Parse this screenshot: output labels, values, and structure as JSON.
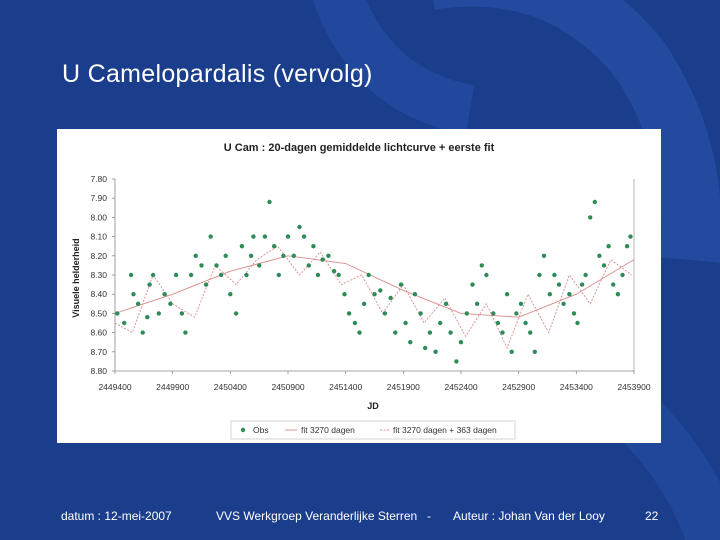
{
  "slide": {
    "title": "U Camelopardalis (vervolg)"
  },
  "footer": {
    "date": "datum : 12-mei-2007",
    "organization": "VVS Werkgroep Veranderlijke Sterren",
    "separator": "-",
    "author": "Auteur : Johan Van der Looy",
    "page_number": "22"
  },
  "colors": {
    "background": "#1a3d8c",
    "obs": "#2e8b57",
    "fit": "#d98b8b"
  },
  "chart_data": {
    "type": "scatter",
    "title": "U Cam : 20-dagen gemiddelde lichtcurve + eerste fit",
    "xlabel": "JD",
    "ylabel": "Visuele helderheid",
    "xlim": [
      2449400,
      2453900
    ],
    "ylim": [
      7.8,
      8.8
    ],
    "y_inverted": true,
    "x_tick_values": [
      2449400,
      2449900,
      2450400,
      2450900,
      2451400,
      2451900,
      2452400,
      2452900,
      2453400,
      2453900
    ],
    "x_tick_labels": [
      "2449400",
      "2449900",
      "2450400",
      "2450900",
      "2451400",
      "2451900",
      "2452400",
      "2452900",
      "2453400",
      "2453900"
    ],
    "y_tick_values": [
      7.8,
      7.9,
      8.0,
      8.1,
      8.2,
      8.3,
      8.4,
      8.5,
      8.6,
      8.7,
      8.8
    ],
    "y_tick_labels": [
      "7.80",
      "7.90",
      "8.00",
      "8.10",
      "8.20",
      "8.30",
      "8.40",
      "8.50",
      "8.60",
      "8.70",
      "8.80"
    ],
    "legend": [
      "Obs",
      "fit 3270 dagen",
      "fit 3270 dagen + 363 dagen"
    ],
    "legend_position": "bottom",
    "series": [
      {
        "name": "Obs",
        "kind": "points",
        "x": [
          2449420,
          2449480,
          2449540,
          2449560,
          2449600,
          2449640,
          2449680,
          2449700,
          2449730,
          2449780,
          2449830,
          2449880,
          2449930,
          2449980,
          2450010,
          2450060,
          2450100,
          2450150,
          2450190,
          2450230,
          2450280,
          2450320,
          2450360,
          2450400,
          2450450,
          2450500,
          2450540,
          2450580,
          2450600,
          2450650,
          2450700,
          2450740,
          2450780,
          2450820,
          2450860,
          2450900,
          2450950,
          2451000,
          2451040,
          2451080,
          2451120,
          2451160,
          2451200,
          2451250,
          2451300,
          2451340,
          2451390,
          2451430,
          2451480,
          2451520,
          2451560,
          2451600,
          2451650,
          2451700,
          2451740,
          2451790,
          2451830,
          2451880,
          2451920,
          2451960,
          2452000,
          2452050,
          2452090,
          2452130,
          2452180,
          2452220,
          2452270,
          2452310,
          2452360,
          2452400,
          2452450,
          2452500,
          2452540,
          2452580,
          2452620,
          2452680,
          2452720,
          2452760,
          2452800,
          2452840,
          2452880,
          2452920,
          2452960,
          2453000,
          2453040,
          2453080,
          2453120,
          2453170,
          2453210,
          2453250,
          2453290,
          2453340,
          2453380,
          2453410,
          2453450,
          2453480,
          2453520,
          2453560,
          2453600,
          2453640,
          2453680,
          2453720,
          2453760,
          2453800,
          2453840,
          2453870
        ],
        "y": [
          8.5,
          8.55,
          8.3,
          8.4,
          8.45,
          8.6,
          8.52,
          8.35,
          8.3,
          8.5,
          8.4,
          8.45,
          8.3,
          8.5,
          8.6,
          8.3,
          8.2,
          8.25,
          8.35,
          8.1,
          8.25,
          8.3,
          8.2,
          8.4,
          8.5,
          8.15,
          8.3,
          8.2,
          8.1,
          8.25,
          8.1,
          7.92,
          8.15,
          8.3,
          8.2,
          8.1,
          8.2,
          8.05,
          8.1,
          8.25,
          8.15,
          8.3,
          8.22,
          8.2,
          8.28,
          8.3,
          8.4,
          8.5,
          8.55,
          8.6,
          8.45,
          8.3,
          8.4,
          8.38,
          8.5,
          8.42,
          8.6,
          8.35,
          8.55,
          8.65,
          8.4,
          8.5,
          8.68,
          8.6,
          8.7,
          8.55,
          8.45,
          8.6,
          8.75,
          8.65,
          8.5,
          8.35,
          8.45,
          8.25,
          8.3,
          8.5,
          8.55,
          8.6,
          8.4,
          8.7,
          8.5,
          8.45,
          8.55,
          8.6,
          8.7,
          8.3,
          8.2,
          8.4,
          8.3,
          8.35,
          8.45,
          8.4,
          8.5,
          8.55,
          8.35,
          8.3,
          8.0,
          7.92,
          8.2,
          8.25,
          8.15,
          8.35,
          8.4,
          8.3,
          8.15,
          8.1
        ]
      },
      {
        "name": "fit 3270 dagen",
        "kind": "line",
        "x": [
          2449400,
          2449900,
          2450400,
          2450900,
          2451400,
          2451900,
          2452400,
          2452900,
          2453400,
          2453900
        ],
        "y": [
          8.5,
          8.4,
          8.28,
          8.2,
          8.24,
          8.38,
          8.5,
          8.52,
          8.4,
          8.22
        ]
      },
      {
        "name": "fit 3270 dagen + 363 dagen",
        "kind": "line",
        "x": [
          2449400,
          2449550,
          2449730,
          2449900,
          2450090,
          2450270,
          2450450,
          2450630,
          2450810,
          2451000,
          2451180,
          2451360,
          2451540,
          2451720,
          2451900,
          2452080,
          2452260,
          2452440,
          2452620,
          2452800,
          2452980,
          2453160,
          2453340,
          2453520,
          2453700,
          2453880
        ],
        "y": [
          8.55,
          8.6,
          8.3,
          8.45,
          8.52,
          8.25,
          8.35,
          8.22,
          8.15,
          8.3,
          8.18,
          8.35,
          8.3,
          8.5,
          8.35,
          8.55,
          8.42,
          8.62,
          8.45,
          8.68,
          8.4,
          8.6,
          8.3,
          8.45,
          8.22,
          8.3
        ]
      }
    ]
  }
}
